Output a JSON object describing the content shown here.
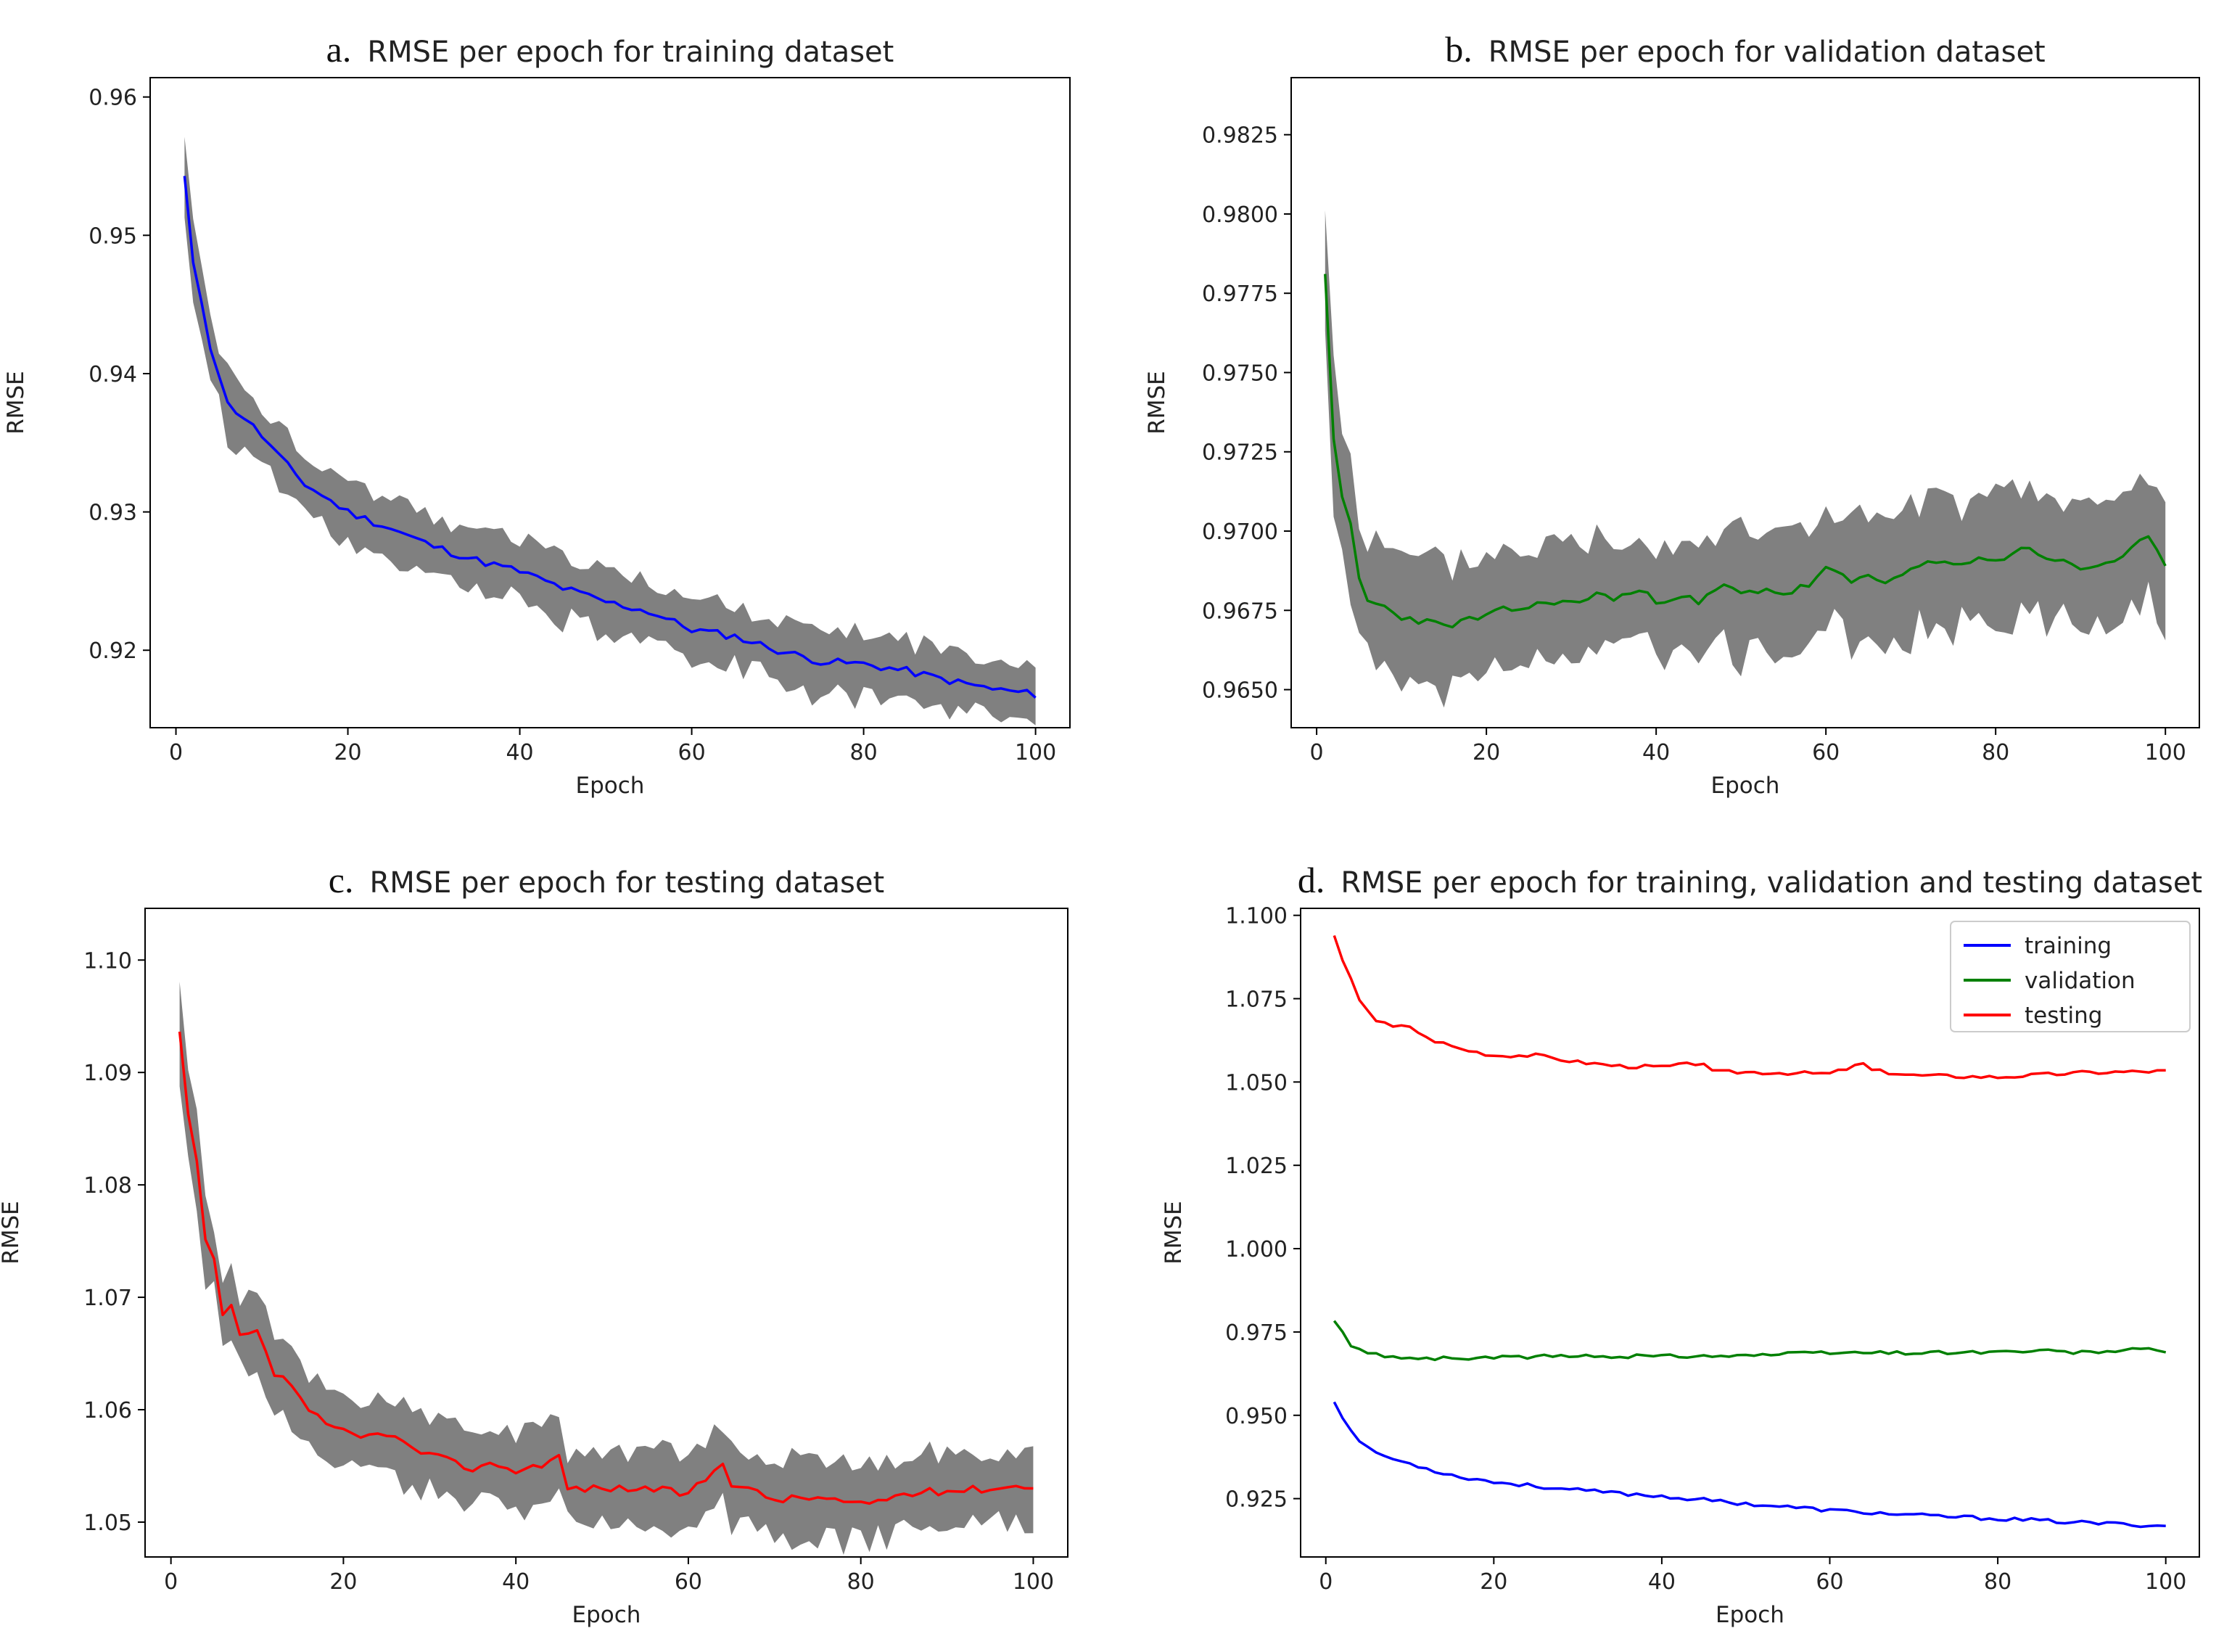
{
  "chart_data": [
    {
      "type": "line",
      "letter": "a.",
      "title": "RMSE per epoch for training dataset",
      "xlabel": "Epoch",
      "ylabel": "RMSE",
      "xlim": [
        -3,
        104
      ],
      "ylim": [
        0.9144,
        0.9614
      ],
      "xticks": [
        0,
        20,
        40,
        60,
        80,
        100
      ],
      "yticks": [
        0.92,
        0.93,
        0.94,
        0.95,
        0.96
      ],
      "ytick_labels": [
        "0.92",
        "0.93",
        "0.94",
        "0.95",
        "0.96"
      ],
      "series": [
        {
          "name": "training",
          "color": "#0000ff",
          "band_color": "#808080",
          "band_half_width": 0.0022,
          "x": [
            1,
            2,
            3,
            4,
            5,
            6,
            8,
            10,
            12,
            15,
            20,
            25,
            30,
            35,
            40,
            45,
            50,
            55,
            60,
            65,
            70,
            75,
            80,
            85,
            90,
            95,
            100
          ],
          "y": [
            0.9542,
            0.9478,
            0.9452,
            0.942,
            0.94,
            0.9378,
            0.9368,
            0.9355,
            0.934,
            0.932,
            0.93,
            0.9288,
            0.9275,
            0.9265,
            0.9257,
            0.9245,
            0.9235,
            0.9228,
            0.9215,
            0.921,
            0.92,
            0.9192,
            0.919,
            0.9185,
            0.9178,
            0.9172,
            0.9168
          ]
        }
      ]
    },
    {
      "type": "line",
      "letter": "b.",
      "title": "RMSE per epoch for validation dataset",
      "xlabel": "Epoch",
      "ylabel": "RMSE",
      "xlim": [
        -3,
        104
      ],
      "ylim": [
        0.9638,
        0.9843
      ],
      "xticks": [
        0,
        20,
        40,
        60,
        80,
        100
      ],
      "yticks": [
        0.965,
        0.9675,
        0.97,
        0.9725,
        0.975,
        0.9775,
        0.98,
        0.9825
      ],
      "ytick_labels": [
        "0.9650",
        "0.9675",
        "0.9700",
        "0.9725",
        "0.9750",
        "0.9775",
        "0.9800",
        "0.9825"
      ],
      "series": [
        {
          "name": "validation",
          "color": "#008000",
          "band_color": "#808080",
          "band_half_width": 0.0019,
          "x": [
            1,
            2,
            3,
            4,
            5,
            6,
            8,
            10,
            12,
            15,
            18,
            20,
            22,
            25,
            28,
            30,
            33,
            35,
            38,
            40,
            43,
            45,
            48,
            50,
            53,
            55,
            58,
            60,
            63,
            65,
            68,
            70,
            73,
            75,
            78,
            80,
            83,
            85,
            88,
            90,
            93,
            95,
            98,
            100
          ],
          "y": [
            0.9782,
            0.9728,
            0.971,
            0.9702,
            0.9685,
            0.9678,
            0.9676,
            0.9673,
            0.9672,
            0.967,
            0.9672,
            0.9673,
            0.9675,
            0.9676,
            0.9678,
            0.9677,
            0.968,
            0.9679,
            0.9681,
            0.9678,
            0.968,
            0.9677,
            0.9683,
            0.968,
            0.9682,
            0.968,
            0.9683,
            0.9688,
            0.9684,
            0.9686,
            0.9684,
            0.9688,
            0.969,
            0.9689,
            0.9692,
            0.969,
            0.9695,
            0.9693,
            0.969,
            0.9688,
            0.969,
            0.9692,
            0.9698,
            0.9688
          ]
        }
      ]
    },
    {
      "type": "line",
      "letter": "c.",
      "title": "RMSE per epoch for testing dataset",
      "xlabel": "Epoch",
      "ylabel": "RMSE",
      "xlim": [
        -3,
        104
      ],
      "ylim": [
        1.0469,
        1.1046
      ],
      "xticks": [
        0,
        20,
        40,
        60,
        80,
        100
      ],
      "yticks": [
        1.05,
        1.06,
        1.07,
        1.08,
        1.09,
        1.1
      ],
      "ytick_labels": [
        "1.05",
        "1.06",
        "1.07",
        "1.08",
        "1.09",
        "1.10"
      ],
      "series": [
        {
          "name": "testing",
          "color": "#ff0000",
          "band_color": "#808080",
          "band_half_width": 0.0033,
          "x": [
            1,
            2,
            3,
            4,
            5,
            6,
            7,
            8,
            10,
            12,
            14,
            16,
            18,
            20,
            22,
            25,
            28,
            30,
            33,
            35,
            38,
            40,
            43,
            45,
            46,
            50,
            55,
            60,
            63,
            64,
            65,
            70,
            75,
            80,
            85,
            90,
            95,
            100
          ],
          "y": [
            1.0935,
            1.0862,
            1.0818,
            1.075,
            1.0732,
            1.0685,
            1.069,
            1.0665,
            1.0668,
            1.0632,
            1.0622,
            1.06,
            1.0585,
            1.058,
            1.0575,
            1.058,
            1.0565,
            1.056,
            1.0552,
            1.0548,
            1.0552,
            1.0545,
            1.0552,
            1.0558,
            1.053,
            1.053,
            1.053,
            1.0525,
            1.0545,
            1.0555,
            1.0535,
            1.052,
            1.0522,
            1.0515,
            1.0525,
            1.0528,
            1.053,
            1.0533
          ]
        }
      ]
    },
    {
      "type": "line",
      "letter": "d.",
      "title": "RMSE per epoch for training, validation and testing dataset",
      "xlabel": "Epoch",
      "ylabel": "RMSE",
      "xlim": [
        -3,
        104
      ],
      "ylim": [
        0.9075,
        1.1021
      ],
      "xticks": [
        0,
        20,
        40,
        60,
        80,
        100
      ],
      "yticks": [
        0.925,
        0.95,
        0.975,
        1.0,
        1.025,
        1.05,
        1.075,
        1.1
      ],
      "ytick_labels": [
        "0.925",
        "0.950",
        "0.975",
        "1.000",
        "1.025",
        "1.050",
        "1.075",
        "1.100"
      ],
      "legend": {
        "position": "upper-right",
        "entries": [
          "training",
          "validation",
          "testing"
        ]
      },
      "series": [
        {
          "name": "training",
          "color": "#0000ff",
          "x": [
            1,
            3,
            5,
            8,
            10,
            15,
            20,
            30,
            40,
            50,
            60,
            70,
            80,
            90,
            100
          ],
          "y": [
            0.9542,
            0.9452,
            0.94,
            0.9368,
            0.9355,
            0.932,
            0.93,
            0.9275,
            0.9257,
            0.9235,
            0.9215,
            0.92,
            0.919,
            0.9178,
            0.9168
          ]
        },
        {
          "name": "validation",
          "color": "#008000",
          "x": [
            1,
            3,
            5,
            8,
            10,
            15,
            20,
            25,
            30,
            40,
            50,
            60,
            70,
            80,
            85,
            90,
            98,
            100
          ],
          "y": [
            0.9782,
            0.971,
            0.9685,
            0.9676,
            0.9673,
            0.967,
            0.9673,
            0.9676,
            0.9677,
            0.9678,
            0.968,
            0.9688,
            0.9688,
            0.969,
            0.9693,
            0.9688,
            0.9698,
            0.9688
          ]
        },
        {
          "name": "testing",
          "color": "#ff0000",
          "x": [
            1,
            2,
            4,
            6,
            8,
            10,
            12,
            16,
            20,
            25,
            30,
            35,
            40,
            45,
            46,
            50,
            60,
            64,
            65,
            70,
            80,
            90,
            100
          ],
          "y": [
            1.0935,
            1.0862,
            1.075,
            1.0685,
            1.0665,
            1.0668,
            1.0632,
            1.06,
            1.058,
            1.058,
            1.056,
            1.0548,
            1.0545,
            1.0558,
            1.053,
            1.053,
            1.0525,
            1.0555,
            1.0535,
            1.052,
            1.0515,
            1.0528,
            1.0533
          ]
        }
      ]
    }
  ]
}
